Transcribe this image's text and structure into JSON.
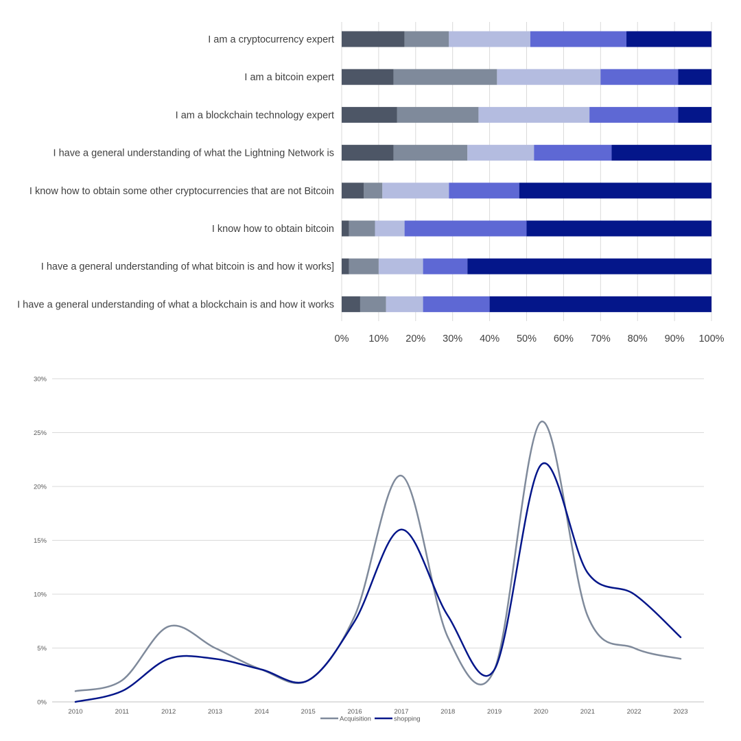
{
  "charts": {
    "colors": {
      "seg": [
        "#4d5666",
        "#7f8a9b",
        "#b4bce0",
        "#5e68d4",
        "#04168a"
      ],
      "grid": "#d9d9d9",
      "acquisition": "#7f8a9b",
      "shopping": "#04168a"
    }
  },
  "chart_data": [
    {
      "type": "bar",
      "orientation": "horizontal",
      "stacked": "percent",
      "categories": [
        "I am a cryptocurrency expert",
        "I am a bitcoin expert",
        "I am a blockchain technology expert",
        "I have a general understanding of what the Lightning Network is",
        "I know how to obtain some other cryptocurrencies that are not Bitcoin",
        "I know how to obtain bitcoin",
        "I have a general understanding of what bitcoin is and how it works]",
        "I have a general understanding of what a blockchain is and how it works"
      ],
      "series": [
        {
          "values": [
            17,
            14,
            15,
            14,
            6,
            2,
            2,
            5
          ]
        },
        {
          "values": [
            12,
            28,
            22,
            20,
            5,
            7,
            8,
            7
          ]
        },
        {
          "values": [
            22,
            28,
            30,
            18,
            18,
            8,
            12,
            10
          ]
        },
        {
          "values": [
            26,
            21,
            24,
            21,
            19,
            33,
            12,
            18
          ]
        },
        {
          "values": [
            23,
            9,
            9,
            27,
            52,
            50,
            66,
            60
          ]
        }
      ],
      "xticks": [
        "0%",
        "10%",
        "20%",
        "30%",
        "40%",
        "50%",
        "60%",
        "70%",
        "80%",
        "90%",
        "100%"
      ],
      "xlim": [
        0,
        100
      ],
      "grid": true
    },
    {
      "type": "line",
      "x": [
        "2010",
        "2011",
        "2012",
        "2013",
        "2014",
        "2015",
        "2016",
        "2017",
        "2018",
        "2019",
        "2020",
        "2021",
        "2022",
        "2023"
      ],
      "series": [
        {
          "name": "Acquisition",
          "values": [
            1,
            2,
            7,
            5,
            3,
            2,
            8,
            21,
            6,
            3,
            26,
            8,
            5,
            4
          ]
        },
        {
          "name": "shopping",
          "values": [
            0,
            1,
            4,
            4,
            3,
            2,
            7.5,
            16,
            8,
            3,
            22,
            12,
            10,
            6
          ]
        }
      ],
      "yticks": [
        "0%",
        "5%",
        "10%",
        "15%",
        "20%",
        "25%",
        "30%"
      ],
      "ylim": [
        0,
        30
      ],
      "grid": true,
      "legend_position": "bottom"
    }
  ]
}
